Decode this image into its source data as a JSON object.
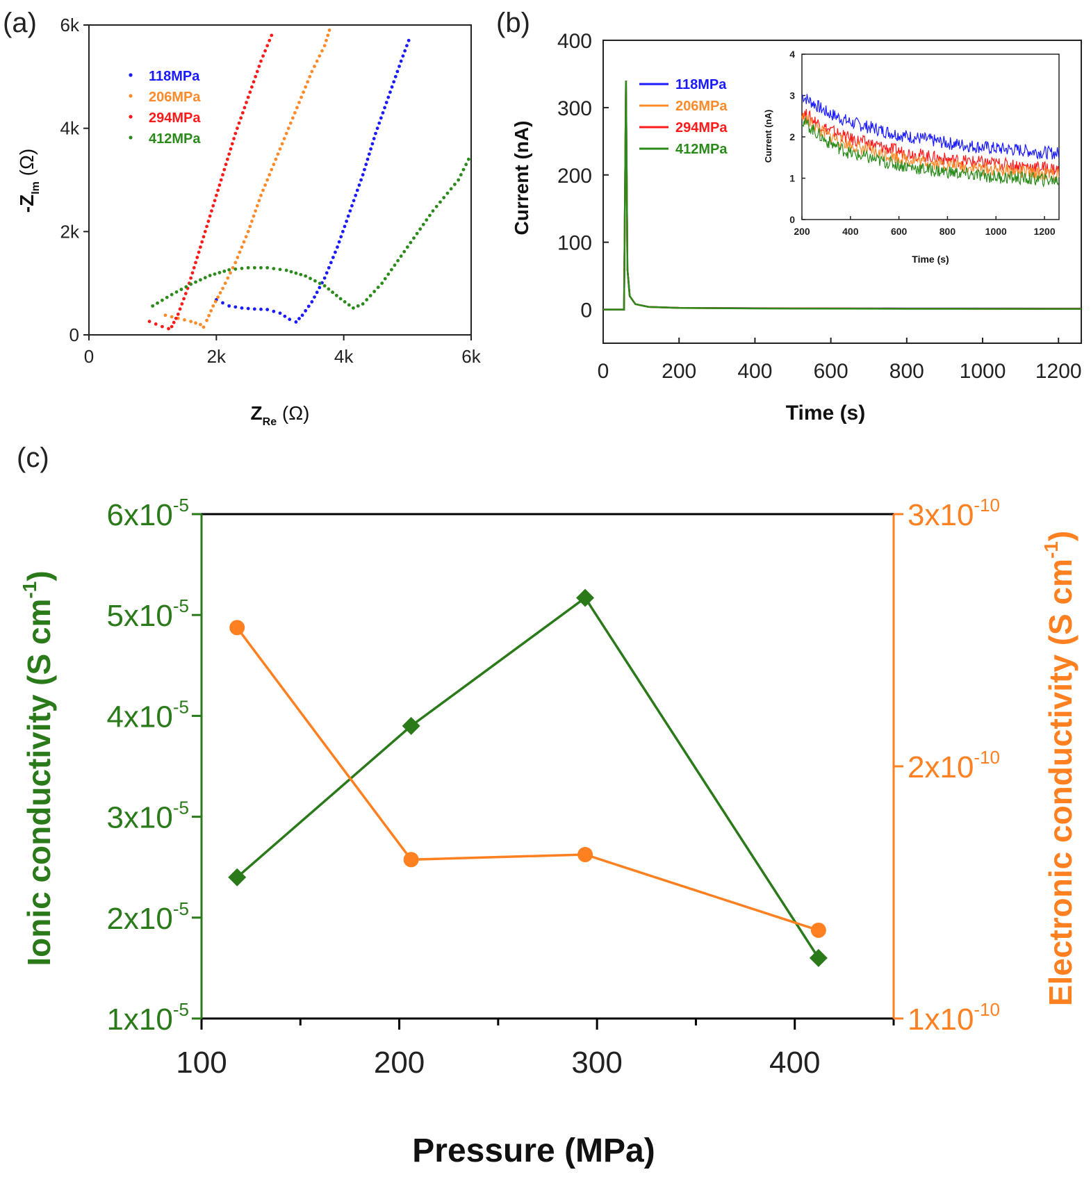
{
  "panels": {
    "a": "(a)",
    "b": "(b)",
    "c": "(c)"
  },
  "colors": {
    "118MPa": "#1a1aff",
    "206MPa": "#ff8a2a",
    "294MPa": "#ff1a1a",
    "412MPa": "#2a8a1a",
    "ionic": "#2a7a1a",
    "electronic": "#ff8020"
  },
  "chart_data": [
    {
      "id": "a",
      "type": "scatter",
      "title": "",
      "xlabel": "Z",
      "xlabel_sub": "Re",
      "xlabel_unit": "(Ω)",
      "ylabel": "-Z",
      "ylabel_sub": "Im",
      "ylabel_unit": "(Ω)",
      "xlim": [
        0,
        6000
      ],
      "ylim": [
        0,
        6000
      ],
      "xticks": [
        0,
        2000,
        4000,
        6000
      ],
      "xtick_labels": [
        "0",
        "2k",
        "4k",
        "6k"
      ],
      "yticks": [
        0,
        2000,
        4000,
        6000
      ],
      "ytick_labels": [
        "0",
        "2k",
        "4k",
        "6k"
      ],
      "legend": "top-left",
      "series": [
        {
          "name": "118MPa",
          "points": [
            [
              2000,
              680
            ],
            [
              2100,
              620
            ],
            [
              2200,
              560
            ],
            [
              2400,
              520
            ],
            [
              2600,
              500
            ],
            [
              2800,
              490
            ],
            [
              3000,
              420
            ],
            [
              3150,
              300
            ],
            [
              3250,
              250
            ],
            [
              3350,
              380
            ],
            [
              3500,
              640
            ],
            [
              3700,
              1100
            ],
            [
              3900,
              1700
            ],
            [
              4100,
              2400
            ],
            [
              4300,
              3100
            ],
            [
              4500,
              3900
            ],
            [
              4700,
              4600
            ],
            [
              4900,
              5300
            ],
            [
              5050,
              5800
            ]
          ]
        },
        {
          "name": "206MPa",
          "points": [
            [
              1200,
              380
            ],
            [
              1400,
              320
            ],
            [
              1600,
              260
            ],
            [
              1750,
              200
            ],
            [
              1800,
              150
            ],
            [
              1850,
              280
            ],
            [
              1950,
              560
            ],
            [
              2100,
              900
            ],
            [
              2300,
              1400
            ],
            [
              2500,
              2000
            ],
            [
              2700,
              2700
            ],
            [
              2900,
              3300
            ],
            [
              3100,
              3900
            ],
            [
              3300,
              4500
            ],
            [
              3500,
              5100
            ],
            [
              3700,
              5600
            ],
            [
              3800,
              6000
            ]
          ]
        },
        {
          "name": "294MPa",
          "points": [
            [
              950,
              260
            ],
            [
              1050,
              210
            ],
            [
              1150,
              160
            ],
            [
              1250,
              120
            ],
            [
              1300,
              160
            ],
            [
              1400,
              400
            ],
            [
              1550,
              900
            ],
            [
              1700,
              1500
            ],
            [
              1900,
              2300
            ],
            [
              2100,
              3100
            ],
            [
              2300,
              3900
            ],
            [
              2500,
              4600
            ],
            [
              2700,
              5300
            ],
            [
              2900,
              5900
            ]
          ]
        },
        {
          "name": "412MPa",
          "points": [
            [
              1000,
              560
            ],
            [
              1300,
              780
            ],
            [
              1600,
              980
            ],
            [
              1900,
              1150
            ],
            [
              2200,
              1260
            ],
            [
              2500,
              1300
            ],
            [
              2800,
              1300
            ],
            [
              3100,
              1250
            ],
            [
              3400,
              1140
            ],
            [
              3700,
              950
            ],
            [
              3950,
              700
            ],
            [
              4150,
              520
            ],
            [
              4300,
              600
            ],
            [
              4600,
              1000
            ],
            [
              5000,
              1700
            ],
            [
              5400,
              2400
            ],
            [
              5800,
              3000
            ],
            [
              6000,
              3500
            ]
          ]
        }
      ]
    },
    {
      "id": "b",
      "type": "line",
      "title": "",
      "xlabel": "Time (s)",
      "ylabel": "Current (nA)",
      "xlim": [
        0,
        1260
      ],
      "ylim": [
        -50,
        400
      ],
      "xticks": [
        0,
        200,
        400,
        600,
        800,
        1000,
        1200
      ],
      "yticks": [
        0,
        100,
        200,
        300,
        400
      ],
      "legend": "top-left",
      "series": [
        {
          "name": "118MPa",
          "x": [
            0,
            55,
            60,
            64,
            70,
            85,
            120,
            200,
            400,
            800,
            1260
          ],
          "y": [
            0,
            0,
            340,
            60,
            20,
            8,
            4,
            2.5,
            2,
            1.6,
            1.5
          ]
        },
        {
          "name": "206MPa",
          "x": [
            0,
            55,
            60,
            64,
            70,
            85,
            120,
            200,
            400,
            800,
            1260
          ],
          "y": [
            0,
            0,
            340,
            60,
            20,
            8,
            4,
            2.3,
            1.8,
            1.3,
            1.1
          ]
        },
        {
          "name": "294MPa",
          "x": [
            0,
            55,
            60,
            64,
            70,
            85,
            120,
            200,
            400,
            800,
            1260
          ],
          "y": [
            0,
            0,
            340,
            60,
            20,
            8,
            4,
            2.5,
            1.9,
            1.4,
            1.2
          ]
        },
        {
          "name": "412MPa",
          "x": [
            0,
            55,
            60,
            64,
            70,
            85,
            120,
            200,
            400,
            800,
            1260
          ],
          "y": [
            0,
            0,
            340,
            60,
            20,
            8,
            4,
            2.3,
            1.6,
            1.1,
            0.95
          ]
        }
      ],
      "inset": {
        "xlabel": "Time (s)",
        "ylabel": "Current (nA)",
        "xlim": [
          200,
          1260
        ],
        "ylim": [
          0,
          4
        ],
        "xticks": [
          200,
          400,
          600,
          800,
          1000,
          1200
        ],
        "yticks": [
          0,
          1,
          2,
          3,
          4
        ],
        "series": [
          {
            "name": "118MPa",
            "x": [
              200,
              300,
              400,
              500,
              600,
              700,
              800,
              900,
              1000,
              1100,
              1200,
              1260
            ],
            "y": [
              3.0,
              2.6,
              2.35,
              2.2,
              2.05,
              1.95,
              1.85,
              1.78,
              1.72,
              1.68,
              1.62,
              1.6
            ]
          },
          {
            "name": "294MPa",
            "x": [
              200,
              300,
              400,
              500,
              600,
              700,
              800,
              900,
              1000,
              1100,
              1200,
              1260
            ],
            "y": [
              2.6,
              2.2,
              1.95,
              1.8,
              1.65,
              1.55,
              1.45,
              1.4,
              1.35,
              1.3,
              1.25,
              1.2
            ]
          },
          {
            "name": "206MPa",
            "x": [
              200,
              300,
              400,
              500,
              600,
              700,
              800,
              900,
              1000,
              1100,
              1200,
              1260
            ],
            "y": [
              2.5,
              2.05,
              1.8,
              1.62,
              1.5,
              1.4,
              1.32,
              1.25,
              1.2,
              1.15,
              1.1,
              1.08
            ]
          },
          {
            "name": "412MPa",
            "x": [
              200,
              300,
              400,
              500,
              600,
              700,
              800,
              900,
              1000,
              1100,
              1200,
              1260
            ],
            "y": [
              2.4,
              1.9,
              1.6,
              1.45,
              1.32,
              1.22,
              1.15,
              1.08,
              1.03,
              1.0,
              0.96,
              0.95
            ]
          }
        ]
      }
    },
    {
      "id": "c",
      "type": "line",
      "title": "",
      "xlabel": "Pressure (MPa)",
      "ylabel_left": "Ionic conductivity (S cm",
      "ylabel_left_sup": "-1",
      "ylabel_left_close": ")",
      "ylabel_right": "Electronic conductivity (S cm",
      "ylabel_right_sup": "-1",
      "ylabel_right_close": ")",
      "xlim": [
        100,
        450
      ],
      "xticks": [
        100,
        200,
        300,
        400
      ],
      "ylim_left": [
        1e-05,
        6e-05
      ],
      "yticks_left": [
        {
          "value": 1e-05,
          "mant": "1x10",
          "exp": "-5"
        },
        {
          "value": 2e-05,
          "mant": "2x10",
          "exp": "-5"
        },
        {
          "value": 3e-05,
          "mant": "3x10",
          "exp": "-5"
        },
        {
          "value": 4e-05,
          "mant": "4x10",
          "exp": "-5"
        },
        {
          "value": 5e-05,
          "mant": "5x10",
          "exp": "-5"
        },
        {
          "value": 6e-05,
          "mant": "6x10",
          "exp": "-5"
        }
      ],
      "ylim_right": [
        1e-10,
        3e-10
      ],
      "yticks_right": [
        {
          "value": 1e-10,
          "mant": "1x10",
          "exp": "-10"
        },
        {
          "value": 2e-10,
          "mant": "2x10",
          "exp": "-10"
        },
        {
          "value": 3e-10,
          "mant": "3x10",
          "exp": "-10"
        }
      ],
      "series": [
        {
          "axis": "left",
          "marker": "diamond",
          "x": [
            118,
            206,
            294,
            412
          ],
          "y": [
            2.4e-05,
            3.9e-05,
            5.17e-05,
            1.6e-05
          ]
        },
        {
          "axis": "right",
          "marker": "circle",
          "x": [
            118,
            206,
            294,
            412
          ],
          "y": [
            2.55e-10,
            1.63e-10,
            1.65e-10,
            1.35e-10
          ]
        }
      ]
    }
  ]
}
